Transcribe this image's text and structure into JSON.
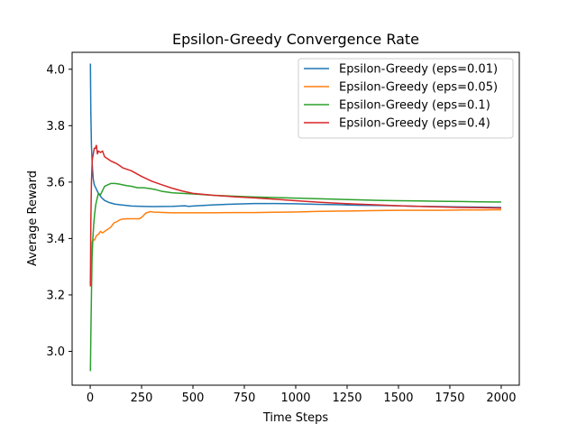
{
  "chart_data": {
    "type": "line",
    "title": "Epsilon-Greedy Convergence Rate",
    "xlabel": "Time Steps",
    "ylabel": "Average Reward",
    "xlim": [
      -88,
      2088
    ],
    "ylim": [
      2.88,
      4.06
    ],
    "x_ticks": [
      0,
      250,
      500,
      750,
      1000,
      1250,
      1500,
      1750,
      2000
    ],
    "x_tick_labels": [
      "0",
      "250",
      "500",
      "750",
      "1000",
      "1250",
      "1500",
      "1750",
      "2000"
    ],
    "y_ticks": [
      3.0,
      3.2,
      3.4,
      3.6,
      3.8,
      4.0
    ],
    "y_tick_labels": [
      "3.0",
      "3.2",
      "3.4",
      "3.6",
      "3.8",
      "4.0"
    ],
    "grid": false,
    "legend_position": "top-right",
    "series": [
      {
        "name": "Epsilon-Greedy (eps=0.01)",
        "color": "#1f77b4",
        "points": [
          [
            1,
            4.02
          ],
          [
            3,
            3.85
          ],
          [
            6,
            3.73
          ],
          [
            10,
            3.66
          ],
          [
            15,
            3.61
          ],
          [
            20,
            3.59
          ],
          [
            30,
            3.575
          ],
          [
            40,
            3.56
          ],
          [
            55,
            3.545
          ],
          [
            70,
            3.535
          ],
          [
            90,
            3.528
          ],
          [
            120,
            3.522
          ],
          [
            150,
            3.519
          ],
          [
            200,
            3.515
          ],
          [
            250,
            3.514
          ],
          [
            300,
            3.513
          ],
          [
            400,
            3.514
          ],
          [
            460,
            3.516
          ],
          [
            480,
            3.514
          ],
          [
            500,
            3.515
          ],
          [
            600,
            3.519
          ],
          [
            700,
            3.522
          ],
          [
            800,
            3.524
          ],
          [
            900,
            3.524
          ],
          [
            1000,
            3.523
          ],
          [
            1100,
            3.521
          ],
          [
            1200,
            3.52
          ],
          [
            1300,
            3.518
          ],
          [
            1400,
            3.517
          ],
          [
            1500,
            3.516
          ],
          [
            1600,
            3.514
          ],
          [
            1700,
            3.513
          ],
          [
            1800,
            3.512
          ],
          [
            1900,
            3.511
          ],
          [
            2000,
            3.51
          ]
        ]
      },
      {
        "name": "Epsilon-Greedy (eps=0.05)",
        "color": "#ff7f0e",
        "points": [
          [
            1,
            3.24
          ],
          [
            3,
            3.3
          ],
          [
            6,
            3.36
          ],
          [
            10,
            3.39
          ],
          [
            15,
            3.395
          ],
          [
            22,
            3.395
          ],
          [
            30,
            3.41
          ],
          [
            40,
            3.415
          ],
          [
            50,
            3.425
          ],
          [
            60,
            3.42
          ],
          [
            70,
            3.425
          ],
          [
            80,
            3.43
          ],
          [
            90,
            3.435
          ],
          [
            100,
            3.44
          ],
          [
            115,
            3.455
          ],
          [
            130,
            3.46
          ],
          [
            150,
            3.468
          ],
          [
            180,
            3.47
          ],
          [
            220,
            3.47
          ],
          [
            240,
            3.47
          ],
          [
            255,
            3.478
          ],
          [
            270,
            3.49
          ],
          [
            290,
            3.495
          ],
          [
            320,
            3.493
          ],
          [
            400,
            3.491
          ],
          [
            500,
            3.491
          ],
          [
            600,
            3.491
          ],
          [
            700,
            3.492
          ],
          [
            800,
            3.492
          ],
          [
            900,
            3.493
          ],
          [
            1000,
            3.494
          ],
          [
            1100,
            3.496
          ],
          [
            1200,
            3.497
          ],
          [
            1300,
            3.498
          ],
          [
            1400,
            3.499
          ],
          [
            1500,
            3.5
          ],
          [
            1600,
            3.5
          ],
          [
            1700,
            3.5
          ],
          [
            1800,
            3.501
          ],
          [
            1900,
            3.501
          ],
          [
            2000,
            3.502
          ]
        ]
      },
      {
        "name": "Epsilon-Greedy (eps=0.1)",
        "color": "#2ca02c",
        "points": [
          [
            1,
            2.93
          ],
          [
            3,
            3.05
          ],
          [
            6,
            3.2
          ],
          [
            9,
            3.33
          ],
          [
            13,
            3.4
          ],
          [
            17,
            3.45
          ],
          [
            22,
            3.49
          ],
          [
            27,
            3.52
          ],
          [
            33,
            3.54
          ],
          [
            40,
            3.56
          ],
          [
            50,
            3.555
          ],
          [
            60,
            3.57
          ],
          [
            70,
            3.585
          ],
          [
            85,
            3.59
          ],
          [
            100,
            3.595
          ],
          [
            120,
            3.595
          ],
          [
            140,
            3.593
          ],
          [
            160,
            3.59
          ],
          [
            180,
            3.587
          ],
          [
            200,
            3.585
          ],
          [
            230,
            3.58
          ],
          [
            260,
            3.58
          ],
          [
            290,
            3.577
          ],
          [
            320,
            3.573
          ],
          [
            350,
            3.567
          ],
          [
            400,
            3.562
          ],
          [
            500,
            3.558
          ],
          [
            600,
            3.553
          ],
          [
            700,
            3.55
          ],
          [
            800,
            3.547
          ],
          [
            900,
            3.545
          ],
          [
            1000,
            3.543
          ],
          [
            1100,
            3.541
          ],
          [
            1200,
            3.539
          ],
          [
            1300,
            3.537
          ],
          [
            1400,
            3.535
          ],
          [
            1500,
            3.534
          ],
          [
            1600,
            3.533
          ],
          [
            1700,
            3.532
          ],
          [
            1800,
            3.531
          ],
          [
            1900,
            3.53
          ],
          [
            2000,
            3.529
          ]
        ]
      },
      {
        "name": "Epsilon-Greedy (eps=0.4)",
        "color": "#d62728",
        "points": [
          [
            1,
            3.23
          ],
          [
            3,
            3.45
          ],
          [
            6,
            3.6
          ],
          [
            10,
            3.68
          ],
          [
            15,
            3.7
          ],
          [
            20,
            3.72
          ],
          [
            25,
            3.72
          ],
          [
            30,
            3.73
          ],
          [
            35,
            3.7
          ],
          [
            40,
            3.71
          ],
          [
            50,
            3.705
          ],
          [
            60,
            3.71
          ],
          [
            70,
            3.69
          ],
          [
            80,
            3.685
          ],
          [
            100,
            3.675
          ],
          [
            130,
            3.665
          ],
          [
            160,
            3.65
          ],
          [
            200,
            3.64
          ],
          [
            250,
            3.62
          ],
          [
            300,
            3.603
          ],
          [
            350,
            3.59
          ],
          [
            400,
            3.578
          ],
          [
            450,
            3.568
          ],
          [
            500,
            3.56
          ],
          [
            600,
            3.553
          ],
          [
            700,
            3.548
          ],
          [
            800,
            3.544
          ],
          [
            900,
            3.539
          ],
          [
            1000,
            3.534
          ],
          [
            1100,
            3.529
          ],
          [
            1200,
            3.525
          ],
          [
            1300,
            3.522
          ],
          [
            1400,
            3.519
          ],
          [
            1500,
            3.516
          ],
          [
            1600,
            3.514
          ],
          [
            1700,
            3.512
          ],
          [
            1800,
            3.51
          ],
          [
            1900,
            3.509
          ],
          [
            2000,
            3.508
          ]
        ]
      }
    ]
  }
}
